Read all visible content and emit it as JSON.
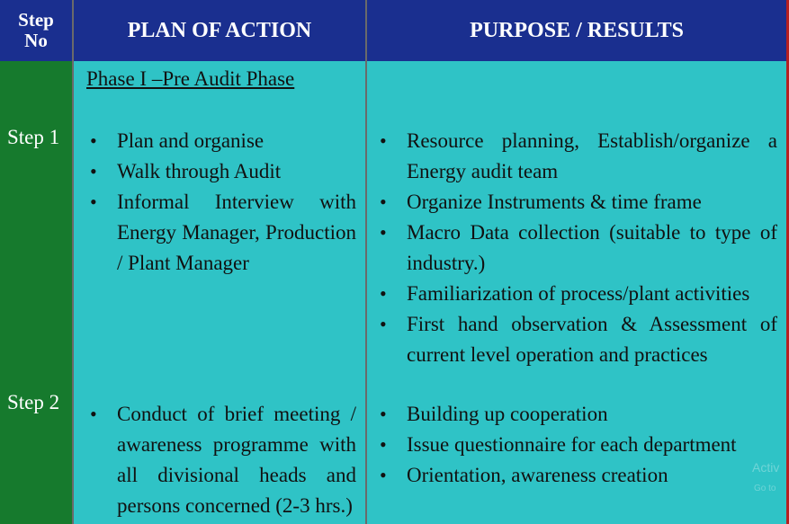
{
  "header": {
    "step_no": "Step No",
    "plan": "PLAN OF ACTION",
    "purpose": "PURPOSE / RESULTS"
  },
  "phase_title": "Phase I –Pre Audit Phase",
  "steps": [
    {
      "label": "Step 1",
      "plan": [
        "Plan and organise",
        "Walk through Audit",
        "Informal Interview with Energy Manager, Production / Plant Manager"
      ],
      "purpose": [
        "Resource planning, Establish/organize a Energy audit team",
        "Organize Instruments & time frame",
        "Macro Data collection (suitable to type of industry.)",
        "Familiarization of process/plant activities",
        "First hand observation & Assessment of current level operation and practices"
      ]
    },
    {
      "label": "Step 2",
      "plan": [
        "Conduct of brief meeting / awareness programme with all divisional heads and persons concerned (2-3 hrs.)"
      ],
      "purpose": [
        "Building up cooperation",
        "Issue questionnaire for each department",
        "Orientation, awareness creation"
      ]
    }
  ],
  "watermark": {
    "line1": "Activ",
    "line2": "Go to"
  }
}
